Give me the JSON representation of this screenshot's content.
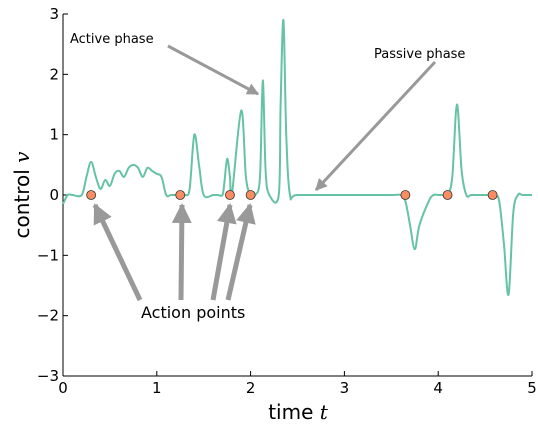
{
  "chart_data": {
    "type": "line",
    "xlabel": "time",
    "xlabel_var": "t",
    "ylabel": "control",
    "ylabel_var": "v",
    "xlim": [
      0,
      5
    ],
    "ylim": [
      -3,
      3
    ],
    "xticks": [
      0,
      1,
      2,
      3,
      4,
      5
    ],
    "yticks": [
      3,
      2,
      1,
      0,
      -1,
      -2,
      -3
    ],
    "xtick_labels": [
      "0",
      "1",
      "2",
      "3",
      "4",
      "5"
    ],
    "ytick_labels": [
      "3",
      "2",
      "1",
      "0",
      "−1",
      "−2",
      "−3"
    ],
    "grid": false,
    "series": [
      {
        "color": "#66c2a5",
        "x": [
          0,
          0.05,
          0.1,
          0.2,
          0.25,
          0.3,
          0.35,
          0.4,
          0.45,
          0.5,
          0.55,
          0.6,
          0.65,
          0.7,
          0.75,
          0.8,
          0.85,
          0.9,
          0.95,
          1.0,
          1.05,
          1.1,
          1.15,
          1.2,
          1.25,
          1.3,
          1.35,
          1.4,
          1.45,
          1.5,
          1.6,
          1.65,
          1.7,
          1.72,
          1.75,
          1.78,
          1.8,
          1.9,
          1.95,
          2.0,
          2.05,
          2.1,
          2.13,
          2.16,
          2.2,
          2.3,
          2.32,
          2.35,
          2.38,
          2.42,
          2.5,
          3.0,
          3.5,
          3.6,
          3.65,
          3.7,
          3.75,
          3.8,
          3.9,
          3.95,
          4.0,
          4.05,
          4.1,
          4.15,
          4.2,
          4.25,
          4.3,
          4.35,
          4.4,
          4.5,
          4.55,
          4.6,
          4.65,
          4.7,
          4.75,
          4.8,
          4.85,
          4.9,
          5.0
        ],
        "y": [
          -0.15,
          0.0,
          0.0,
          0.0,
          0.3,
          0.55,
          0.3,
          0.1,
          0.25,
          0.15,
          0.35,
          0.4,
          0.3,
          0.45,
          0.5,
          0.45,
          0.3,
          0.45,
          0.4,
          0.35,
          0.3,
          0.0,
          0.0,
          0.0,
          0.0,
          0.0,
          0.1,
          1.0,
          0.5,
          0.0,
          0.0,
          0.0,
          0.0,
          0.2,
          0.6,
          0.3,
          0.0,
          1.4,
          0.3,
          0.0,
          0.0,
          0.3,
          1.9,
          0.4,
          0.0,
          0.0,
          1.5,
          2.9,
          1.0,
          0.0,
          0.0,
          0.0,
          0.0,
          0.0,
          -0.1,
          -0.5,
          -0.9,
          -0.5,
          -0.1,
          0.0,
          0.0,
          0.0,
          0.0,
          0.3,
          1.5,
          0.4,
          0.0,
          0.0,
          0.0,
          0.0,
          0.0,
          0.0,
          -0.1,
          -0.8,
          -1.65,
          -0.3,
          0.0,
          0.0,
          0.0
        ]
      }
    ],
    "action_points": {
      "color": "#fc8d62",
      "x": [
        0.3,
        1.25,
        1.78,
        2.0,
        3.65,
        4.1,
        4.58
      ],
      "y": [
        0,
        0,
        0,
        0,
        0,
        0,
        0
      ]
    },
    "annotations": {
      "active_phase": "Active phase",
      "passive_phase": "Passive phase",
      "action_points": "Action points"
    }
  }
}
